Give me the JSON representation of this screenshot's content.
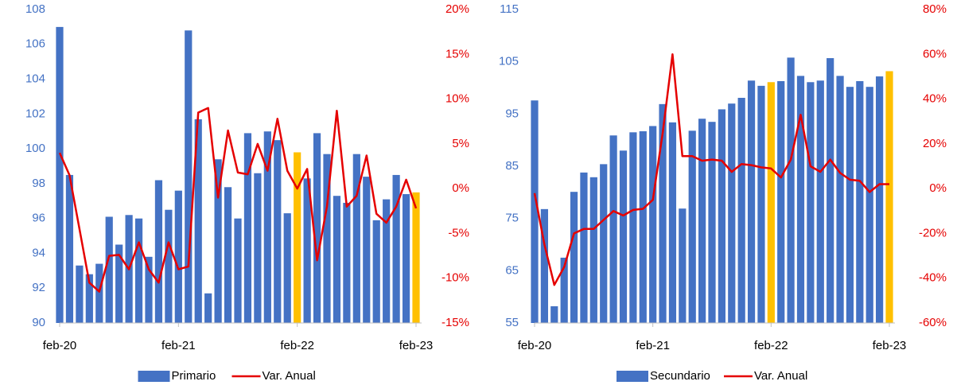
{
  "chart_data": [
    {
      "type": "bar_line",
      "categories": [
        "feb-20",
        null,
        null,
        null,
        null,
        null,
        null,
        null,
        null,
        null,
        null,
        null,
        "feb-21",
        null,
        null,
        null,
        null,
        null,
        null,
        null,
        null,
        null,
        null,
        null,
        "feb-22",
        null,
        null,
        null,
        null,
        null,
        null,
        null,
        null,
        null,
        null,
        null,
        "feb-23"
      ],
      "series": [
        {
          "name": "Primario",
          "color": "#4472c4",
          "colors": [
            "#4472c4",
            "#4472c4",
            "#4472c4",
            "#4472c4",
            "#4472c4",
            "#4472c4",
            "#4472c4",
            "#4472c4",
            "#4472c4",
            "#4472c4",
            "#4472c4",
            "#4472c4",
            "#4472c4",
            "#4472c4",
            "#4472c4",
            "#4472c4",
            "#4472c4",
            "#4472c4",
            "#4472c4",
            "#4472c4",
            "#4472c4",
            "#4472c4",
            "#4472c4",
            "#4472c4",
            "#ffc000",
            "#4472c4",
            "#4472c4",
            "#4472c4",
            "#4472c4",
            "#4472c4",
            "#4472c4",
            "#4472c4",
            "#4472c4",
            "#4472c4",
            "#4472c4",
            "#4472c4",
            "#ffc000"
          ],
          "values": [
            107.0,
            98.5,
            93.3,
            92.8,
            93.4,
            96.1,
            94.5,
            96.2,
            96.0,
            93.8,
            98.2,
            96.5,
            97.6,
            106.8,
            101.7,
            91.7,
            99.4,
            97.8,
            96.0,
            100.9,
            98.6,
            101.0,
            100.5,
            96.3,
            99.8,
            98.3,
            100.9,
            99.7,
            97.3,
            96.9,
            99.7,
            98.4,
            95.9,
            97.1,
            98.5,
            97.4,
            97.5
          ]
        },
        {
          "name": "Var. Anual",
          "color": "#e50000",
          "axis": "y2",
          "values": [
            4.0,
            1.5,
            -4.5,
            -10.5,
            -11.5,
            -7.5,
            -7.4,
            -9.0,
            -6.0,
            -9.0,
            -10.5,
            -6.0,
            -9.0,
            -8.7,
            8.5,
            9.0,
            -1.0,
            6.5,
            1.8,
            1.6,
            5.0,
            2.0,
            7.8,
            2.0,
            0.0,
            2.2,
            -8.0,
            -2.0,
            8.7,
            -2.0,
            -0.8,
            3.7,
            -2.8,
            -3.8,
            -2.0,
            1.0,
            -2.2
          ]
        }
      ],
      "ylim": [
        90,
        108
      ],
      "yticks": [
        90,
        92,
        94,
        96,
        98,
        100,
        102,
        104,
        106,
        108
      ],
      "y2lim": [
        -15,
        20
      ],
      "y2ticks": [
        {
          "value": -15,
          "label": "-15%"
        },
        {
          "value": -10,
          "label": "-10%"
        },
        {
          "value": -5,
          "label": "-5%"
        },
        {
          "value": 0,
          "label": "0%"
        },
        {
          "value": 5,
          "label": "5%"
        },
        {
          "value": 10,
          "label": "10%"
        },
        {
          "value": 15,
          "label": "15%"
        },
        {
          "value": 20,
          "label": "20%"
        }
      ],
      "legend": "bottom"
    },
    {
      "type": "bar_line",
      "categories": [
        "feb-20",
        null,
        null,
        null,
        null,
        null,
        null,
        null,
        null,
        null,
        null,
        null,
        "feb-21",
        null,
        null,
        null,
        null,
        null,
        null,
        null,
        null,
        null,
        null,
        null,
        "feb-22",
        null,
        null,
        null,
        null,
        null,
        null,
        null,
        null,
        null,
        null,
        null,
        "feb-23"
      ],
      "series": [
        {
          "name": "Secundario",
          "color": "#4472c4",
          "colors": [
            "#4472c4",
            "#4472c4",
            "#4472c4",
            "#4472c4",
            "#4472c4",
            "#4472c4",
            "#4472c4",
            "#4472c4",
            "#4472c4",
            "#4472c4",
            "#4472c4",
            "#4472c4",
            "#4472c4",
            "#4472c4",
            "#4472c4",
            "#4472c4",
            "#4472c4",
            "#4472c4",
            "#4472c4",
            "#4472c4",
            "#4472c4",
            "#4472c4",
            "#4472c4",
            "#4472c4",
            "#ffc000",
            "#4472c4",
            "#4472c4",
            "#4472c4",
            "#4472c4",
            "#4472c4",
            "#4472c4",
            "#4472c4",
            "#4472c4",
            "#4472c4",
            "#4472c4",
            "#4472c4",
            "#ffc000"
          ],
          "values": [
            97.6,
            76.8,
            58.2,
            67.5,
            80.1,
            83.8,
            82.9,
            85.4,
            90.9,
            88.0,
            91.5,
            91.7,
            92.7,
            96.9,
            93.4,
            76.9,
            91.8,
            94.1,
            93.5,
            95.9,
            97.0,
            98.1,
            101.4,
            100.4,
            101.1,
            101.3,
            105.8,
            102.3,
            101.1,
            101.4,
            105.7,
            102.3,
            100.2,
            101.3,
            100.2,
            102.2,
            103.2
          ]
        },
        {
          "name": "Var. Anual",
          "color": "#e50000",
          "axis": "y2",
          "values": [
            -2,
            -25,
            -43,
            -35,
            -20,
            -18,
            -18,
            -14,
            -10,
            -12,
            -9.5,
            -9,
            -5,
            25,
            60,
            14.5,
            14.5,
            12.5,
            13,
            12.5,
            7.5,
            11,
            10.5,
            9.5,
            9,
            5,
            13,
            33,
            10,
            7.5,
            13,
            7,
            4,
            3.5,
            -1.5,
            2,
            2
          ]
        }
      ],
      "ylim": [
        55,
        115
      ],
      "yticks": [
        55,
        65,
        75,
        85,
        95,
        105,
        115
      ],
      "y2lim": [
        -60,
        80
      ],
      "y2ticks": [
        {
          "value": -60,
          "label": "-60%"
        },
        {
          "value": -40,
          "label": "-40%"
        },
        {
          "value": -20,
          "label": "-20%"
        },
        {
          "value": 0,
          "label": "0%"
        },
        {
          "value": 20,
          "label": "20%"
        },
        {
          "value": 40,
          "label": "40%"
        },
        {
          "value": 60,
          "label": "60%"
        },
        {
          "value": 80,
          "label": "80%"
        }
      ],
      "legend": "bottom"
    }
  ]
}
